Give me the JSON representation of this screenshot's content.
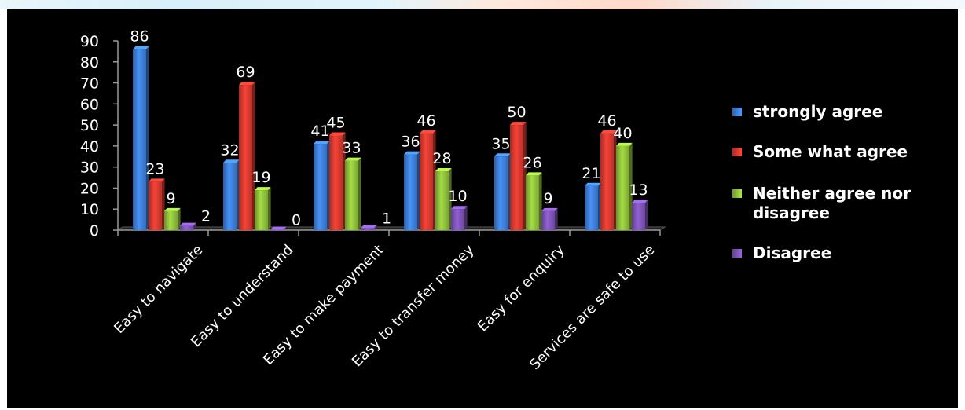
{
  "chart_data": {
    "type": "bar",
    "title": "",
    "xlabel": "",
    "ylabel": "",
    "ylim": [
      0,
      90
    ],
    "yticks": [
      "0",
      "10",
      "20",
      "30",
      "40",
      "50",
      "60",
      "70",
      "80",
      "90"
    ],
    "categories": [
      "Easy to navigate",
      "Easy to understand",
      "Easy to make payment",
      "Easy to transfer money",
      "Easy for enquiry",
      "Services are safe to use"
    ],
    "series": [
      {
        "name": "strongly agree",
        "color": "#3e7fd8",
        "values": [
          86,
          32,
          41,
          36,
          35,
          21
        ]
      },
      {
        "name": "Some what agree",
        "color": "#d83a30",
        "values": [
          23,
          69,
          45,
          46,
          50,
          46
        ]
      },
      {
        "name": "Neither agree nor disagree",
        "color": "#8fc03c",
        "values": [
          9,
          19,
          33,
          28,
          26,
          40
        ]
      },
      {
        "name": "Disagree",
        "color": "#7f54b8",
        "values": [
          2,
          0,
          1,
          10,
          9,
          13
        ]
      }
    ],
    "legend_position": "right",
    "grid": false,
    "style": "3d-clustered-column",
    "background": "#000000"
  }
}
